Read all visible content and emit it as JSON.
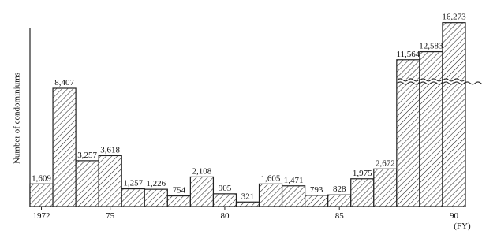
{
  "chart_data": {
    "type": "bar",
    "y_label": "Number of condominiums",
    "x_label": "(FY)",
    "categories": [
      "1972",
      null,
      null,
      "75",
      null,
      null,
      null,
      null,
      "80",
      null,
      null,
      null,
      null,
      "85",
      null,
      null,
      null,
      null,
      "90"
    ],
    "values": [
      1609,
      8407,
      3257,
      3618,
      1257,
      1226,
      754,
      2108,
      905,
      321,
      1605,
      1471,
      793,
      828,
      1975,
      2672,
      11564,
      12583,
      16273
    ],
    "value_labels": [
      "1,609",
      "8,407",
      "3,257",
      "3,618",
      "1,257",
      "1,226",
      "754",
      "2,108",
      "905",
      "321",
      "1,605",
      "1,471",
      "793",
      "828",
      "1,975",
      "2,672",
      "11,564",
      "12,583",
      "16,273"
    ],
    "color": "#222222"
  }
}
